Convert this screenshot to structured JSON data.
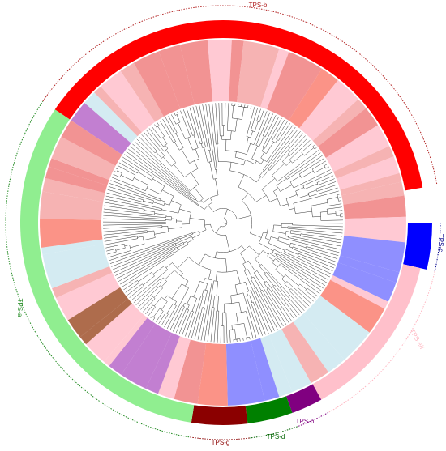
{
  "clades": [
    {
      "label": "TPS-b",
      "color": "#ff0000"
    },
    {
      "label": "TPS-c",
      "color": "#0000ff"
    },
    {
      "label": "TPS-e/f",
      "color": "#ffc0cb"
    },
    {
      "label": "TPS-h",
      "color": "#800080"
    },
    {
      "label": "TPS-d",
      "color": "#008000"
    },
    {
      "label": "TPS-g",
      "color": "#8b0000"
    },
    {
      "label": "TPS-a",
      "color": "#90ee90"
    }
  ]
}
